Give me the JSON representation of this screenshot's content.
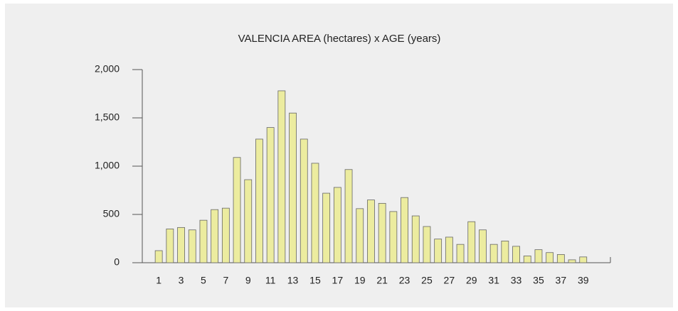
{
  "chart_data": {
    "type": "bar",
    "title": "VALENCIA AREA (hectares) x AGE (years)",
    "categories": [
      "1",
      null,
      "3",
      null,
      "5",
      null,
      "7",
      null,
      "9",
      null,
      "11",
      null,
      "13",
      null,
      "15",
      null,
      "17",
      null,
      "19",
      null,
      "21",
      null,
      "23",
      null,
      "25",
      null,
      "27",
      null,
      "29",
      null,
      "31",
      null,
      "33",
      null,
      "35",
      null,
      "37",
      null,
      "39"
    ],
    "values": [
      125,
      350,
      365,
      340,
      440,
      550,
      565,
      1090,
      860,
      1280,
      1400,
      1780,
      1550,
      1280,
      1030,
      720,
      780,
      965,
      560,
      650,
      615,
      530,
      675,
      485,
      375,
      245,
      265,
      190,
      425,
      340,
      190,
      225,
      170,
      70,
      135,
      105,
      85,
      30,
      60
    ],
    "color": "#ecec9f",
    "ylim": [
      0,
      2000
    ],
    "yticks": [
      0,
      500,
      {
        "value": 1000,
        "label": "1,000"
      },
      {
        "value": 1500,
        "label": "1,500"
      },
      {
        "value": 2000,
        "label": "2,000"
      }
    ]
  }
}
